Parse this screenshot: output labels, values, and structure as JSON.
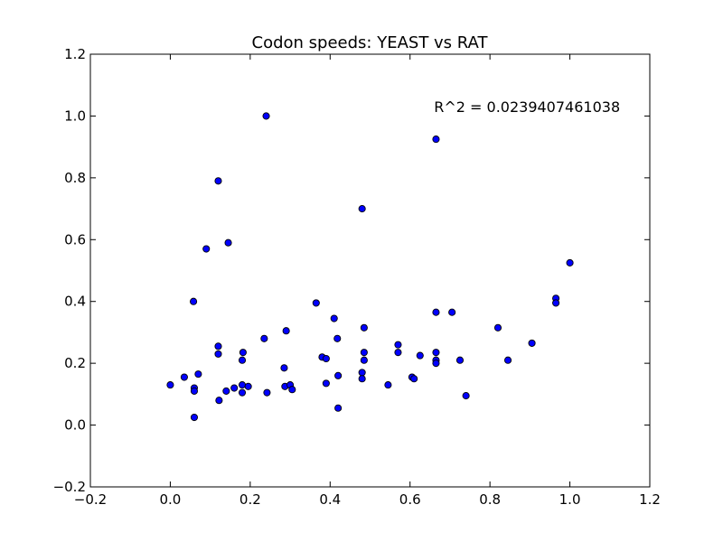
{
  "chart_data": {
    "type": "scatter",
    "title": "Codon speeds: YEAST vs RAT",
    "xlabel": "",
    "ylabel": "",
    "xlim": [
      -0.2,
      1.2
    ],
    "ylim": [
      -0.2,
      1.2
    ],
    "xticks": [
      -0.2,
      0.0,
      0.2,
      0.4,
      0.6,
      0.8,
      1.0,
      1.2
    ],
    "yticks": [
      -0.2,
      0.0,
      0.2,
      0.4,
      0.6,
      0.8,
      1.0,
      1.2
    ],
    "xtick_labels": [
      "−0.2",
      "0.0",
      "0.2",
      "0.4",
      "0.6",
      "0.8",
      "1.0",
      "1.2"
    ],
    "ytick_labels": [
      "−0.2",
      "0.0",
      "0.2",
      "0.4",
      "0.6",
      "0.8",
      "1.0",
      "1.2"
    ],
    "grid": false,
    "marker_color": "#0000ff",
    "annotation": {
      "text": "R^2 = 0.0239407461038",
      "x": 0.66,
      "y": 1.03
    },
    "points": [
      [
        0.0,
        0.13
      ],
      [
        0.035,
        0.155
      ],
      [
        0.058,
        0.4
      ],
      [
        0.06,
        0.12
      ],
      [
        0.06,
        0.11
      ],
      [
        0.06,
        0.025
      ],
      [
        0.07,
        0.165
      ],
      [
        0.09,
        0.57
      ],
      [
        0.12,
        0.23
      ],
      [
        0.12,
        0.255
      ],
      [
        0.12,
        0.79
      ],
      [
        0.122,
        0.08
      ],
      [
        0.14,
        0.11
      ],
      [
        0.145,
        0.59
      ],
      [
        0.16,
        0.12
      ],
      [
        0.18,
        0.13
      ],
      [
        0.18,
        0.105
      ],
      [
        0.18,
        0.21
      ],
      [
        0.182,
        0.235
      ],
      [
        0.195,
        0.125
      ],
      [
        0.235,
        0.28
      ],
      [
        0.24,
        1.0
      ],
      [
        0.242,
        0.105
      ],
      [
        0.285,
        0.185
      ],
      [
        0.287,
        0.125
      ],
      [
        0.29,
        0.305
      ],
      [
        0.3,
        0.13
      ],
      [
        0.305,
        0.115
      ],
      [
        0.365,
        0.395
      ],
      [
        0.38,
        0.22
      ],
      [
        0.39,
        0.135
      ],
      [
        0.39,
        0.215
      ],
      [
        0.41,
        0.345
      ],
      [
        0.418,
        0.28
      ],
      [
        0.42,
        0.055
      ],
      [
        0.42,
        0.16
      ],
      [
        0.48,
        0.7
      ],
      [
        0.48,
        0.17
      ],
      [
        0.48,
        0.15
      ],
      [
        0.485,
        0.235
      ],
      [
        0.485,
        0.21
      ],
      [
        0.485,
        0.315
      ],
      [
        0.545,
        0.13
      ],
      [
        0.57,
        0.26
      ],
      [
        0.57,
        0.235
      ],
      [
        0.605,
        0.155
      ],
      [
        0.61,
        0.15
      ],
      [
        0.625,
        0.225
      ],
      [
        0.665,
        0.925
      ],
      [
        0.665,
        0.365
      ],
      [
        0.665,
        0.235
      ],
      [
        0.665,
        0.21
      ],
      [
        0.665,
        0.2
      ],
      [
        0.705,
        0.365
      ],
      [
        0.725,
        0.21
      ],
      [
        0.74,
        0.095
      ],
      [
        0.82,
        0.315
      ],
      [
        0.845,
        0.21
      ],
      [
        0.905,
        0.265
      ],
      [
        0.965,
        0.41
      ],
      [
        0.965,
        0.395
      ],
      [
        1.0,
        0.525
      ]
    ]
  }
}
